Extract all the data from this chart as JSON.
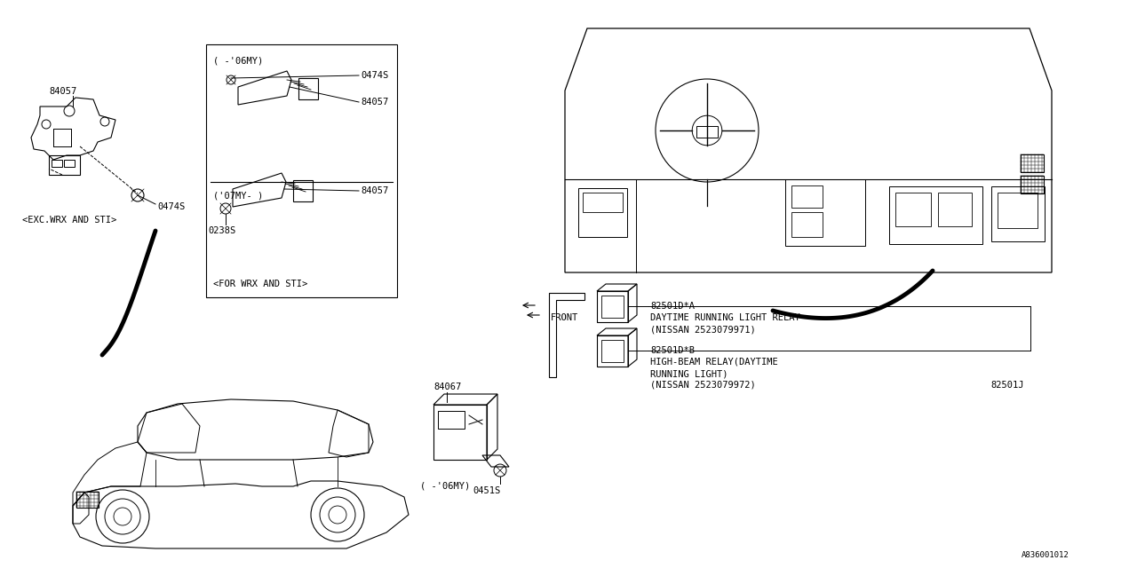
{
  "bg_color": "#ffffff",
  "line_color": "#000000",
  "diagram_id": "A836001012",
  "font_size": 7.5,
  "font_size_small": 6.5,
  "parts": {
    "label_84057": "84057",
    "label_0474S": "0474S",
    "caption_exc": "<EXC.WRX AND STI>",
    "box_title_1": "( -'06MY)",
    "box_0474S": "0474S",
    "box_84057_1": "84057",
    "box_title_2": "('07MY- )",
    "box_84057_2": "84057",
    "box_0238S": "0238S",
    "box_caption": "<FOR WRX AND STI>",
    "relay1_id": "82501D*A",
    "relay1_line1": "DAYTIME RUNNING LIGHT RELAY",
    "relay1_line2": "(NISSAN 2523079971)",
    "relay2_id": "82501D*B",
    "relay2_line1": "HIGH-BEAM RELAY(DAYTIME",
    "relay2_line2": "RUNNING LIGHT)",
    "relay2_line3": "(NISSAN 2523079972)",
    "relay_suffix": "82501J",
    "label_84067": "84067",
    "label_0451S": "0451S",
    "caption_06my": "( -'06MY)",
    "front_label": "FRONT"
  }
}
